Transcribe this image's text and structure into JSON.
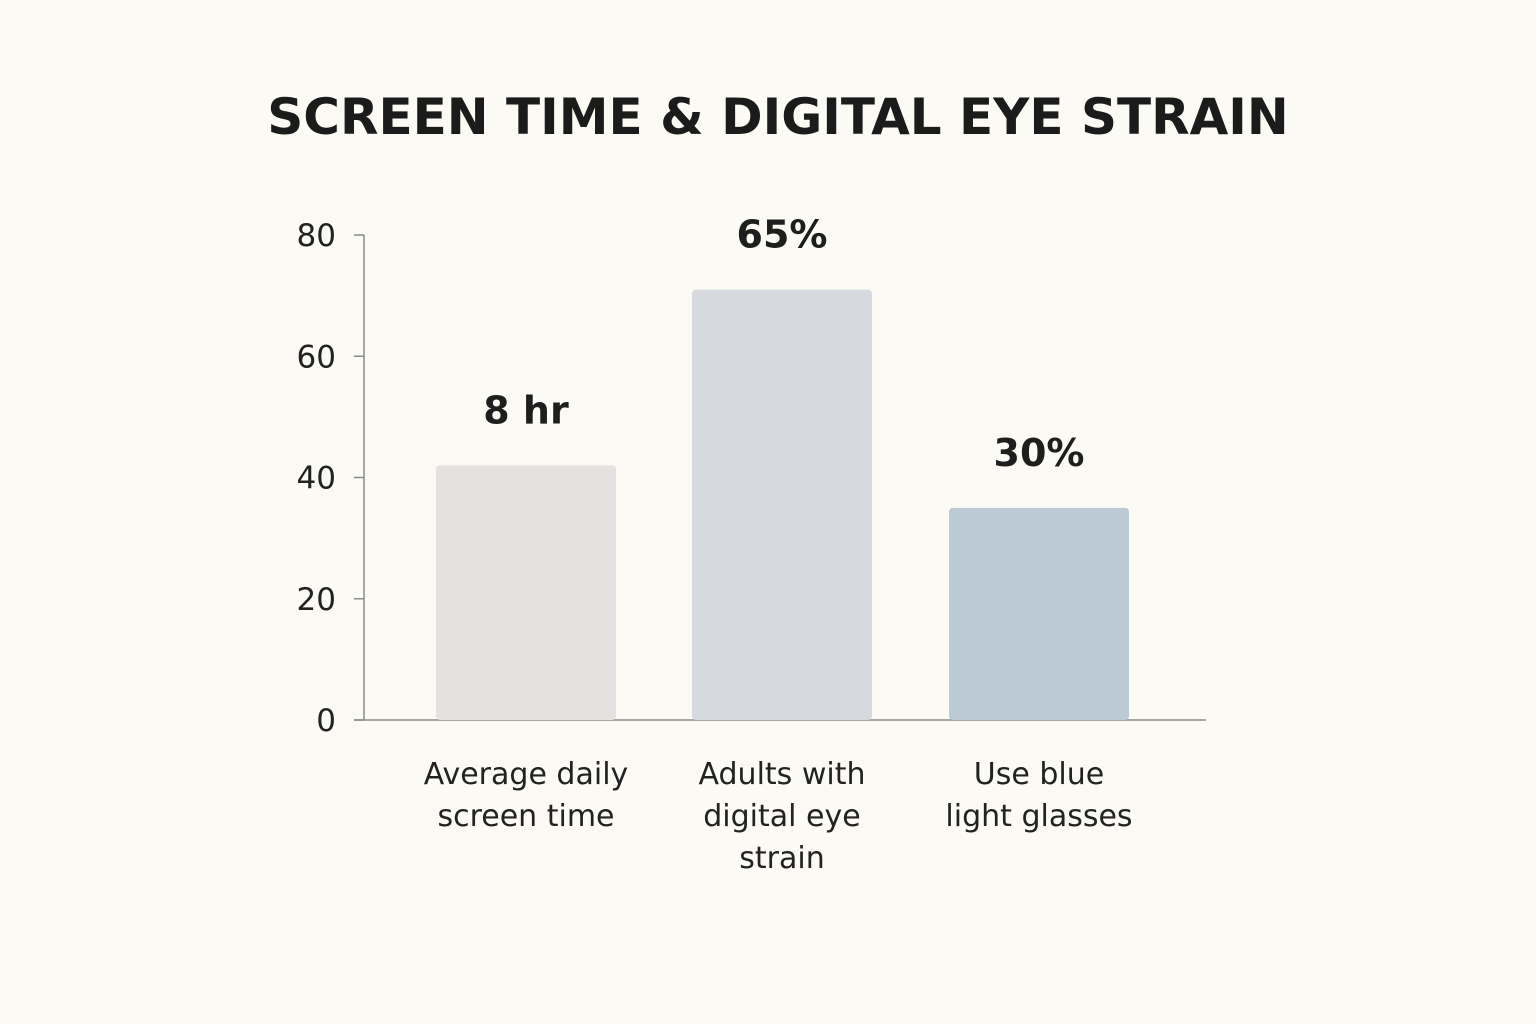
{
  "chart_data": {
    "type": "bar",
    "title": "SCREEN TIME & DIGITAL EYE STRAIN",
    "xlabel": "",
    "ylabel": "",
    "ylim": [
      0,
      80
    ],
    "yticks": [
      0,
      20,
      40,
      60,
      80
    ],
    "grid": false,
    "categories": [
      [
        "Average daily",
        "screen time"
      ],
      [
        "Adults with",
        "digital eye",
        "strain"
      ],
      [
        "Use blue",
        "light glasses"
      ]
    ],
    "values": [
      42,
      71,
      35
    ],
    "data_labels": [
      "8 hr",
      "65%",
      "30%"
    ],
    "colors": [
      "#e3e2e0",
      "#d6dade",
      "#bccad6"
    ]
  },
  "colors": {
    "background": "#fcfaf5",
    "axis": "#8a8a8a",
    "text": "#1e1e1e"
  }
}
